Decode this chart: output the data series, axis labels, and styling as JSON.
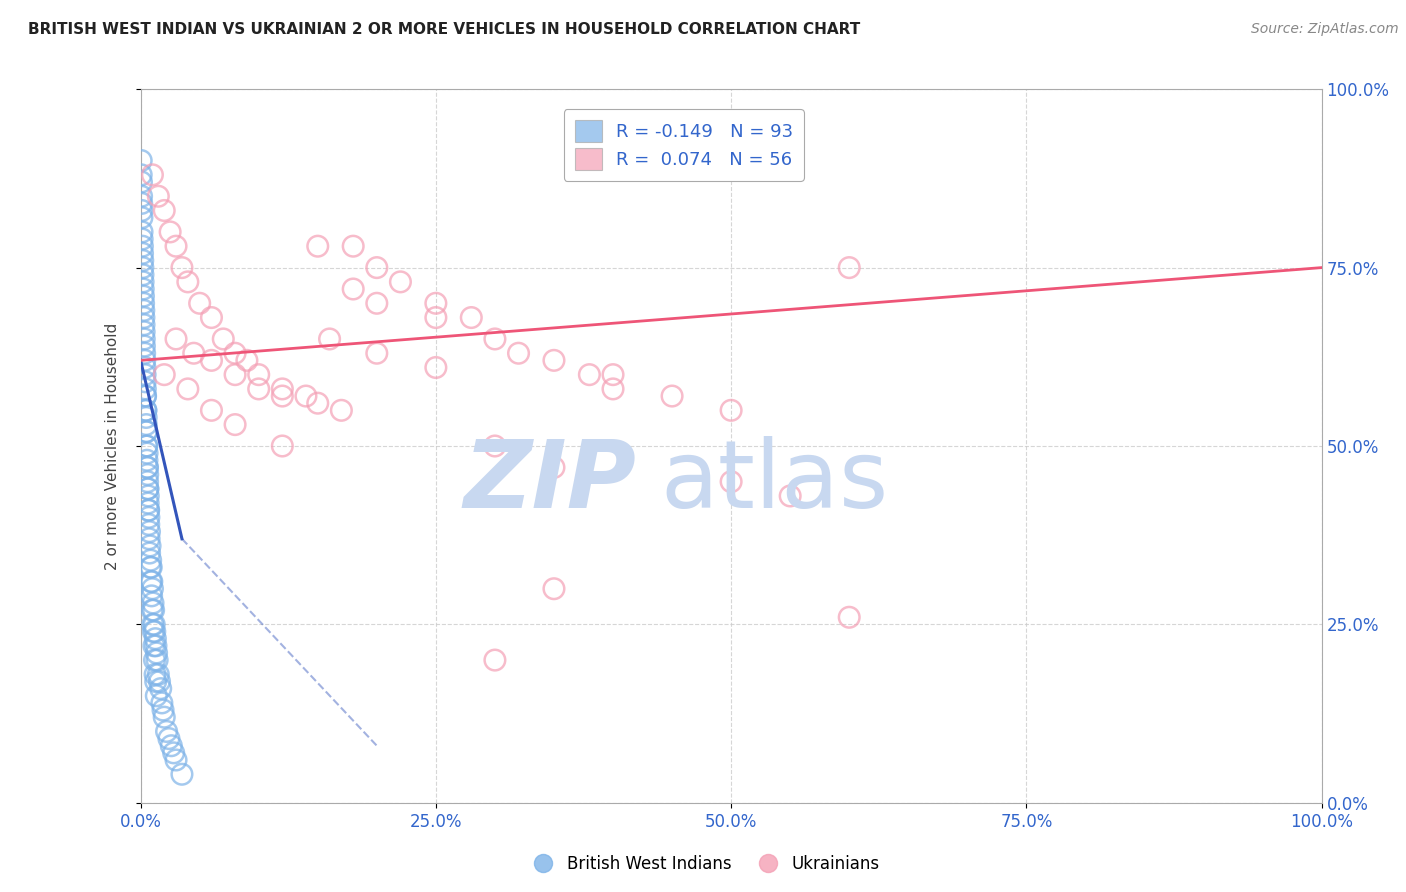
{
  "title": "BRITISH WEST INDIAN VS UKRAINIAN 2 OR MORE VEHICLES IN HOUSEHOLD CORRELATION CHART",
  "source": "Source: ZipAtlas.com",
  "ylabel": "2 or more Vehicles in Household",
  "legend_R1": "-0.149",
  "legend_N1": "93",
  "legend_R2": "0.074",
  "legend_N2": "56",
  "blue_color": "#7EB3E8",
  "blue_edge_color": "#5A9AD4",
  "pink_color": "#F4A0B5",
  "pink_edge_color": "#E87090",
  "blue_line_color": "#3355BB",
  "pink_line_color": "#EE5577",
  "watermark_zip_color": "#C8D8F0",
  "watermark_atlas_color": "#C8D8F0",
  "title_color": "#222222",
  "source_color": "#888888",
  "tick_color": "#3366CC",
  "ylabel_color": "#444444",
  "grid_color": "#CCCCCC",
  "blue_points_x": [
    0.05,
    0.08,
    0.1,
    0.12,
    0.15,
    0.18,
    0.2,
    0.22,
    0.25,
    0.28,
    0.3,
    0.32,
    0.35,
    0.38,
    0.4,
    0.42,
    0.45,
    0.48,
    0.5,
    0.52,
    0.55,
    0.58,
    0.6,
    0.62,
    0.65,
    0.68,
    0.7,
    0.75,
    0.8,
    0.85,
    0.9,
    0.95,
    1.0,
    1.05,
    1.1,
    1.15,
    1.2,
    1.25,
    1.3,
    1.35,
    1.4,
    1.5,
    1.6,
    1.7,
    1.8,
    1.9,
    2.0,
    2.2,
    2.4,
    2.6,
    2.8,
    3.0,
    3.5,
    0.05,
    0.07,
    0.09,
    0.11,
    0.13,
    0.16,
    0.19,
    0.21,
    0.24,
    0.27,
    0.29,
    0.31,
    0.34,
    0.37,
    0.39,
    0.41,
    0.44,
    0.47,
    0.49,
    0.51,
    0.54,
    0.57,
    0.59,
    0.61,
    0.64,
    0.67,
    0.69,
    0.72,
    0.76,
    0.82,
    0.88,
    0.93,
    0.98,
    1.03,
    1.08,
    1.13,
    1.18,
    1.23,
    1.28,
    1.33
  ],
  "blue_points_y": [
    88,
    85,
    83,
    80,
    78,
    76,
    74,
    72,
    70,
    68,
    66,
    64,
    62,
    60,
    58,
    57,
    55,
    53,
    52,
    50,
    49,
    47,
    46,
    44,
    43,
    41,
    40,
    38,
    36,
    34,
    33,
    31,
    30,
    28,
    27,
    25,
    24,
    23,
    22,
    21,
    20,
    18,
    17,
    16,
    14,
    13,
    12,
    10,
    9,
    8,
    7,
    6,
    4,
    90,
    87,
    84,
    82,
    79,
    77,
    75,
    73,
    71,
    69,
    67,
    65,
    63,
    61,
    59,
    57,
    55,
    54,
    52,
    50,
    48,
    47,
    45,
    44,
    42,
    41,
    39,
    37,
    35,
    33,
    31,
    29,
    27,
    25,
    24,
    22,
    20,
    18,
    17,
    15
  ],
  "pink_points_x": [
    1.0,
    1.5,
    2.0,
    2.5,
    3.0,
    3.5,
    4.0,
    5.0,
    6.0,
    7.0,
    8.0,
    9.0,
    10.0,
    12.0,
    14.0,
    15.0,
    17.0,
    18.0,
    20.0,
    22.0,
    25.0,
    28.0,
    30.0,
    32.0,
    35.0,
    38.0,
    40.0,
    45.0,
    50.0,
    55.0,
    60.0,
    3.0,
    4.5,
    6.0,
    8.0,
    10.0,
    12.0,
    15.0,
    18.0,
    20.0,
    25.0,
    30.0,
    35.0,
    40.0,
    50.0,
    60.0,
    2.0,
    4.0,
    6.0,
    8.0,
    12.0,
    16.0,
    20.0,
    25.0,
    30.0,
    35.0
  ],
  "pink_points_y": [
    88,
    85,
    83,
    80,
    78,
    75,
    73,
    70,
    68,
    65,
    63,
    62,
    60,
    58,
    57,
    56,
    55,
    78,
    75,
    73,
    70,
    68,
    65,
    63,
    62,
    60,
    58,
    57,
    45,
    43,
    75,
    65,
    63,
    62,
    60,
    58,
    57,
    78,
    72,
    70,
    68,
    50,
    47,
    60,
    55,
    26,
    60,
    58,
    55,
    53,
    50,
    65,
    63,
    61,
    20,
    30
  ],
  "blue_reg_start_x": 0.0,
  "blue_reg_start_y": 62.0,
  "blue_reg_solid_end_x": 3.5,
  "blue_reg_solid_end_y": 37.0,
  "blue_reg_dashed_end_x": 20.0,
  "blue_reg_dashed_end_y": 8.0,
  "pink_reg_start_x": 0.0,
  "pink_reg_start_y": 62.0,
  "pink_reg_end_x": 100.0,
  "pink_reg_end_y": 75.0,
  "xlim": [
    0,
    100
  ],
  "ylim": [
    0,
    100
  ],
  "xtick_positions": [
    0,
    25,
    50,
    75,
    100
  ],
  "xticklabels": [
    "0.0%",
    "25.0%",
    "50.0%",
    "75.0%",
    "100.0%"
  ],
  "ytick_positions": [
    0,
    25,
    50,
    75,
    100
  ],
  "right_yticklabels": [
    "0.0%",
    "25.0%",
    "50.0%",
    "75.0%",
    "100.0%"
  ]
}
